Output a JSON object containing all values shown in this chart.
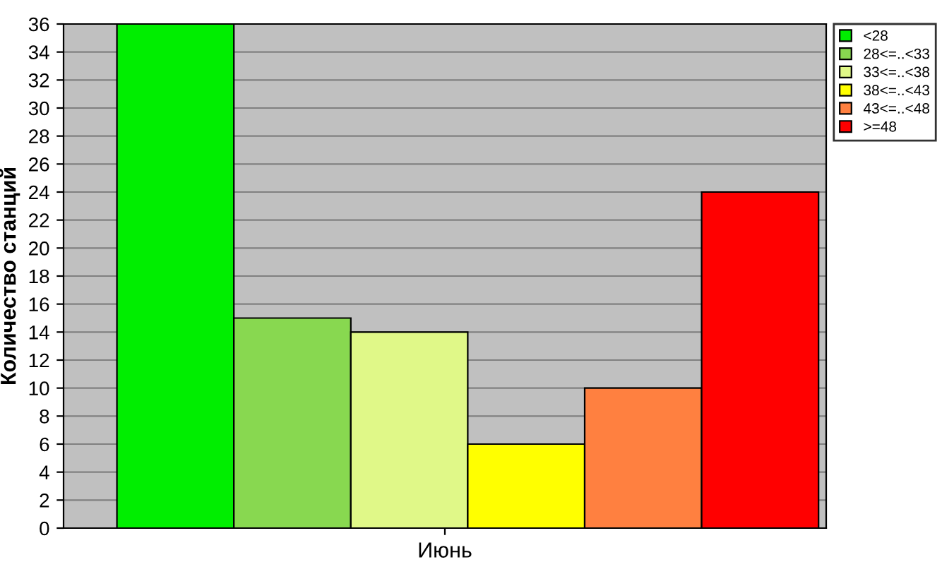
{
  "chart_data": {
    "type": "bar",
    "ylabel": "Количество станций",
    "categories": [
      "Июнь"
    ],
    "series": [
      {
        "name": "<28",
        "color": "#00ee00",
        "values": [
          36
        ]
      },
      {
        "name": "28<=..<33",
        "color": "#88d850",
        "values": [
          15
        ]
      },
      {
        "name": "33<=..<38",
        "color": "#e0f888",
        "values": [
          14
        ]
      },
      {
        "name": "38<=..<43",
        "color": "#ffff00",
        "values": [
          6
        ]
      },
      {
        "name": "43<=..<48",
        "color": "#ff8040",
        "values": [
          10
        ]
      },
      {
        "name": ">=48",
        "color": "#ff0000",
        "values": [
          24
        ]
      }
    ],
    "ylim": [
      0,
      36
    ],
    "yticks": [
      0,
      2,
      4,
      6,
      8,
      10,
      12,
      14,
      16,
      18,
      20,
      22,
      24,
      26,
      28,
      30,
      32,
      34,
      36
    ],
    "grid": "y",
    "legend": "top right"
  }
}
